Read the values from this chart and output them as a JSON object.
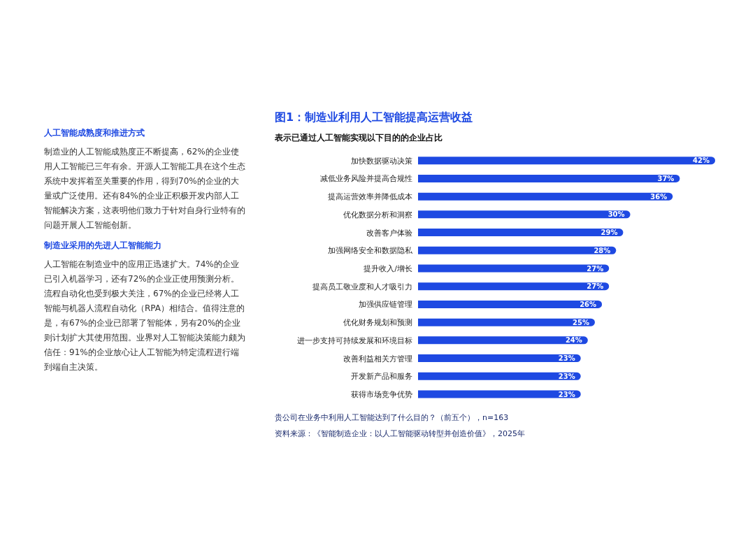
{
  "chart_data": [
    {
      "type": "other",
      "annotations": [
        "人工智能成熟度和推进方式",
        "制造业的人工智能成熟度正不断提高，62%的企业使用人工智能已三年有余。开源人工智能工具在这个生态系统中发挥着至关重要的作用，得到70%的企业的大量或广泛使用。还有84%的企业正积极开发内部人工智能解决方案，这表明他们致力于针对自身行业特有的问题开展人工智能创新。",
        "制造业采用的先进人工智能能力",
        "人工智能在制造业中的应用正迅速扩大。74%的企业已引入机器学习，还有72%的企业正使用预测分析。流程自动化也受到极大关注，67%的企业已经将人工智能与机器人流程自动化（RPA）相结合。值得注意的是，有67%的企业已部署了智能体，另有20%的企业则计划扩大其使用范围。业界对人工智能决策能力颇为信任：91%的企业放心让人工智能为特定流程进行端到端自主决策。"
      ]
    },
    {
      "type": "bar",
      "orientation": "horizontal",
      "title": "图1：制造业利用人工智能提高运营收益",
      "subtitle": "表示已通过人工智能实现以下目的的企业占比",
      "categories": [
        "加快数据驱动决策",
        "减低业务风险并提高合规性",
        "提高运营效率并降低成本",
        "优化数据分析和洞察",
        "改善客户体验",
        "加强网络安全和数据隐私",
        "提升收入/增长",
        "提高员工敬业度和人才吸引力",
        "加强供应链管理",
        "优化财务规划和预测",
        "进一步支持可持续发展和环境目标",
        "改善利益相关方管理",
        "开发新产品和服务",
        "获得市场竞争优势"
      ],
      "values": [
        42,
        37,
        36,
        30,
        29,
        28,
        27,
        27,
        26,
        25,
        24,
        23,
        23,
        23
      ],
      "value_labels": [
        "42%",
        "37%",
        "36%",
        "30%",
        "29%",
        "28%",
        "27%",
        "27%",
        "26%",
        "25%",
        "24%",
        "23%",
        "23%",
        "23%"
      ],
      "color": "#1e49e2",
      "annotations": [
        "贵公司在业务中利用人工智能达到了什么目的？（前五个），n=163",
        "资料来源：《智能制造企业：以人工智能驱动转型并创造价值》，2025年"
      ]
    }
  ]
}
